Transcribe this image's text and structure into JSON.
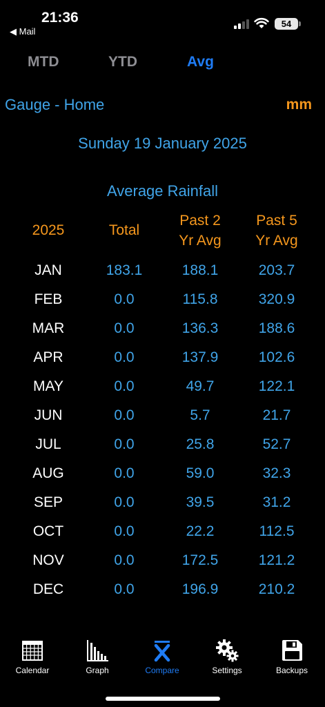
{
  "status_bar": {
    "time": "21:36",
    "back_label": "◀ Mail",
    "battery": "54"
  },
  "segments": [
    {
      "label": "MTD",
      "active": false
    },
    {
      "label": "YTD",
      "active": false
    },
    {
      "label": "Avg",
      "active": true
    }
  ],
  "header": {
    "gauge": "Gauge - Home",
    "unit": "mm",
    "date": "Sunday 19 January 2025",
    "title": "Average Rainfall"
  },
  "table": {
    "columns": {
      "year": "2025",
      "total": "Total",
      "avg2_line1": "Past 2",
      "avg2_line2": "Yr Avg",
      "avg5_line1": "Past 5",
      "avg5_line2": "Yr Avg"
    },
    "rows": [
      {
        "month": "JAN",
        "total": "183.1",
        "avg2": "188.1",
        "avg5": "203.7"
      },
      {
        "month": "FEB",
        "total": "0.0",
        "avg2": "115.8",
        "avg5": "320.9"
      },
      {
        "month": "MAR",
        "total": "0.0",
        "avg2": "136.3",
        "avg5": "188.6"
      },
      {
        "month": "APR",
        "total": "0.0",
        "avg2": "137.9",
        "avg5": "102.6"
      },
      {
        "month": "MAY",
        "total": "0.0",
        "avg2": "49.7",
        "avg5": "122.1"
      },
      {
        "month": "JUN",
        "total": "0.0",
        "avg2": "5.7",
        "avg5": "21.7"
      },
      {
        "month": "JUL",
        "total": "0.0",
        "avg2": "25.8",
        "avg5": "52.7"
      },
      {
        "month": "AUG",
        "total": "0.0",
        "avg2": "59.0",
        "avg5": "32.3"
      },
      {
        "month": "SEP",
        "total": "0.0",
        "avg2": "39.5",
        "avg5": "31.2"
      },
      {
        "month": "OCT",
        "total": "0.0",
        "avg2": "22.2",
        "avg5": "112.5"
      },
      {
        "month": "NOV",
        "total": "0.0",
        "avg2": "172.5",
        "avg5": "121.2"
      },
      {
        "month": "DEC",
        "total": "0.0",
        "avg2": "196.9",
        "avg5": "210.2"
      }
    ]
  },
  "tabs": [
    {
      "label": "Calendar",
      "icon": "calendar-icon",
      "active": false
    },
    {
      "label": "Graph",
      "icon": "bar-chart-icon",
      "active": false
    },
    {
      "label": "Compare",
      "icon": "x-bar-icon",
      "active": true
    },
    {
      "label": "Settings",
      "icon": "gears-icon",
      "active": false
    },
    {
      "label": "Backups",
      "icon": "floppy-disk-icon",
      "active": false
    }
  ],
  "colors": {
    "accent_blue": "#40a4e8",
    "active_blue": "#1f7cf5",
    "orange": "#f5971d",
    "inactive_gray": "#8e8e93"
  }
}
